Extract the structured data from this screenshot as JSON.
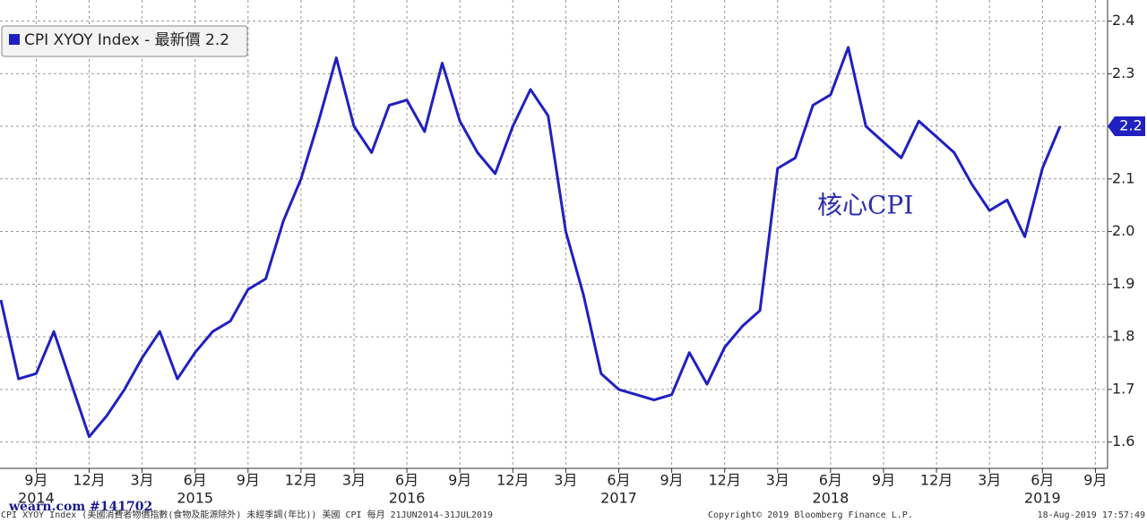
{
  "chart_data": {
    "type": "line",
    "legend_text": "CPI XYOY Index - 最新價 2.2",
    "annotation": "核心CPI",
    "categories": [
      null,
      null,
      "9月",
      null,
      null,
      "12月",
      null,
      null,
      "3月",
      null,
      null,
      "6月",
      null,
      null,
      "9月",
      null,
      null,
      "12月",
      null,
      null,
      "3月",
      null,
      null,
      "6月",
      null,
      null,
      "9月",
      null,
      null,
      "12月",
      null,
      null,
      "3月",
      null,
      null,
      "6月",
      null,
      null,
      "9月",
      null,
      null,
      "12月",
      null,
      null,
      "3月",
      null,
      null,
      "6月",
      null,
      null,
      "9月",
      null,
      null,
      "12月",
      null,
      null,
      "3月",
      null,
      null,
      "6月",
      null,
      null,
      "9月"
    ],
    "year_labels": [
      {
        "value": 2,
        "label": "2014"
      },
      {
        "value": 11,
        "label": "2015"
      },
      {
        "value": 23,
        "label": "2016"
      },
      {
        "value": 35,
        "label": "2017"
      },
      {
        "value": 47,
        "label": "2018"
      },
      {
        "value": 59,
        "label": "2019"
      }
    ],
    "series": [
      {
        "name": "CPI XYOY Index",
        "color": "#2020c0",
        "values": [
          1.87,
          1.72,
          1.73,
          1.81,
          1.71,
          1.61,
          1.65,
          1.7,
          1.76,
          1.81,
          1.72,
          1.77,
          1.81,
          1.83,
          1.89,
          1.91,
          2.02,
          2.1,
          2.21,
          2.33,
          2.2,
          2.15,
          2.24,
          2.25,
          2.19,
          2.32,
          2.21,
          2.15,
          2.11,
          2.2,
          2.27,
          2.22,
          2.0,
          1.88,
          1.73,
          1.7,
          1.69,
          1.68,
          1.69,
          1.77,
          1.71,
          1.78,
          1.82,
          1.85,
          2.12,
          2.14,
          2.24,
          2.26,
          2.35,
          2.2,
          2.17,
          2.14,
          2.21,
          2.18,
          2.15,
          2.09,
          2.04,
          2.06,
          1.99,
          2.12,
          2.2,
          null,
          null
        ]
      }
    ],
    "last_value": 2.2,
    "ylim": [
      1.55,
      2.44
    ],
    "yticks": [
      1.6,
      1.7,
      1.8,
      1.9,
      {
        "value": 2,
        "label": "2.0"
      },
      2.1,
      2.2,
      2.3,
      2.4
    ],
    "grid": true,
    "footer_left": "CPI XYOY Index (美國消費者物價指數(食物及能源除外) 未經季調(年比)) 美國 CPI  每月 21JUN2014-31JUL2019",
    "footer_center": "Copyright© 2019 Bloomberg Finance L.P.",
    "footer_right": "18-Aug-2019 17:57:49",
    "watermark": "wearn.com #141702"
  }
}
